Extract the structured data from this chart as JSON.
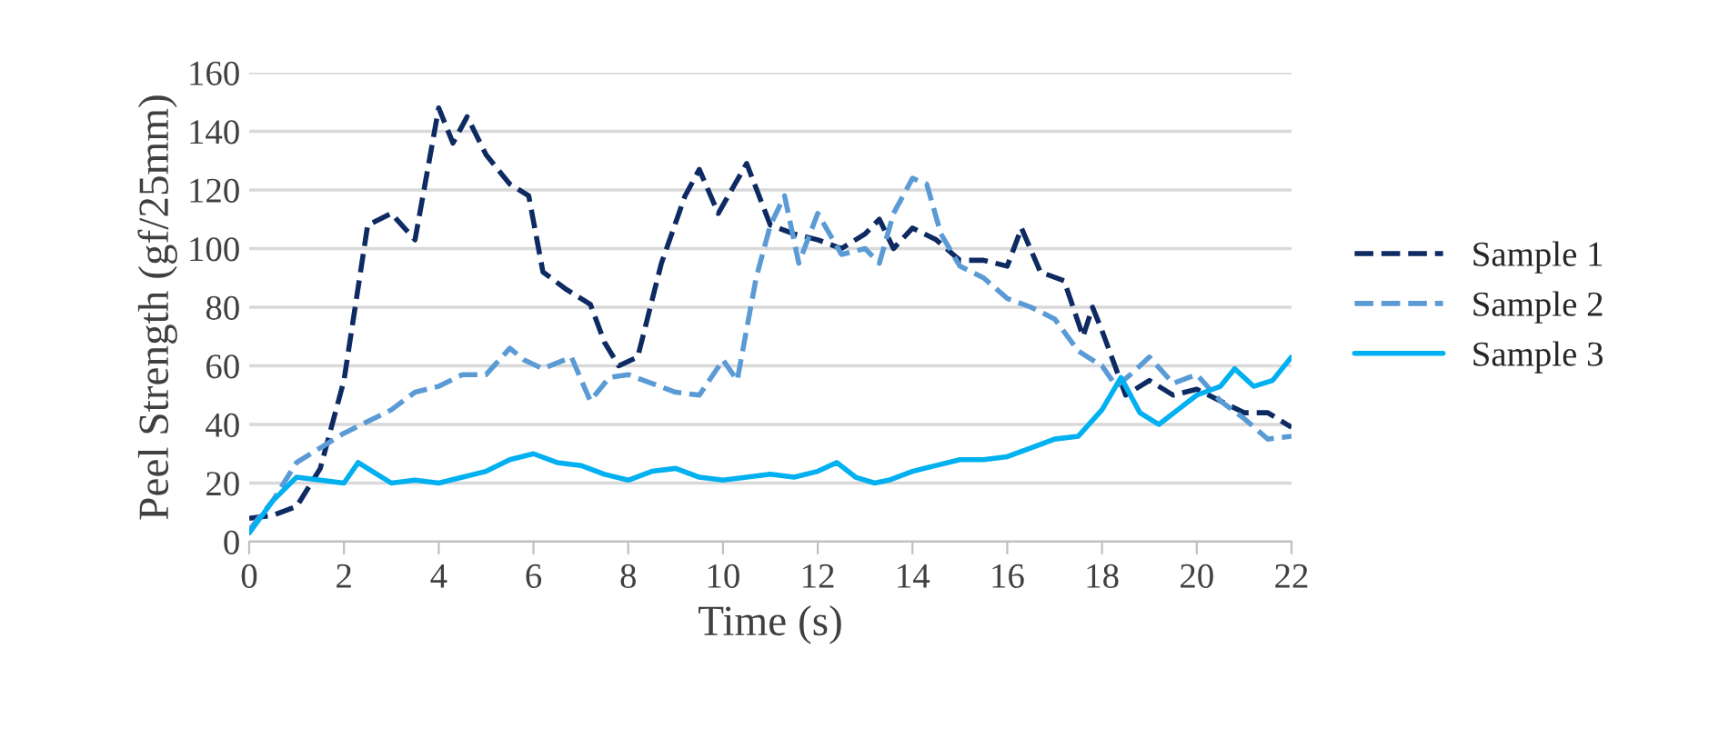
{
  "chart_data": {
    "type": "line",
    "xlabel": "Time (s)",
    "ylabel": "Peel Strength (gf/25mm)",
    "xlim": [
      0,
      22
    ],
    "xticks": [
      0,
      2,
      4,
      6,
      8,
      10,
      12,
      14,
      16,
      18,
      20,
      22
    ],
    "ylim": [
      0,
      160
    ],
    "yticks": [
      0,
      20,
      40,
      60,
      80,
      100,
      120,
      140,
      160
    ],
    "grid": "y",
    "legend": "right",
    "marker": "none",
    "series": [
      {
        "name": "Sample 1",
        "color": "#0d2a62",
        "line_style": "dashed",
        "x": [
          0,
          0.5,
          1,
          1.5,
          2,
          2.5,
          3,
          3.5,
          4,
          4.3,
          4.6,
          5,
          5.5,
          5.9,
          6.2,
          6.7,
          7.2,
          7.5,
          7.8,
          8.2,
          8.7,
          9.2,
          9.5,
          9.9,
          10.5,
          11,
          11.5,
          12,
          12.5,
          13,
          13.3,
          13.6,
          14,
          14.5,
          15,
          15.5,
          16,
          16.3,
          16.7,
          17.2,
          17.6,
          17.8,
          18,
          18.5,
          19,
          19.5,
          20,
          20.5,
          21,
          21.5,
          22
        ],
        "values": [
          8,
          9,
          12,
          25,
          55,
          108,
          112,
          103,
          148,
          136,
          145,
          132,
          122,
          118,
          92,
          86,
          81,
          68,
          60,
          63,
          95,
          118,
          127,
          112,
          129,
          108,
          105,
          103,
          100,
          105,
          110,
          100,
          107,
          103,
          96,
          96,
          94,
          107,
          92,
          89,
          70,
          80,
          72,
          50,
          55,
          50,
          52,
          48,
          44,
          44,
          39
        ]
      },
      {
        "name": "Sample 2",
        "color": "#5b9bd5",
        "line_style": "dashed",
        "x": [
          0,
          0.5,
          1,
          1.5,
          2,
          2.5,
          3,
          3.5,
          4,
          4.5,
          5,
          5.5,
          5.8,
          6.2,
          6.8,
          7.2,
          7.6,
          8,
          8.5,
          9,
          9.5,
          10,
          10.3,
          10.7,
          11,
          11.3,
          11.6,
          12,
          12.5,
          13,
          13.3,
          13.6,
          14,
          14.3,
          14.6,
          15,
          15.5,
          16,
          16.5,
          17,
          17.5,
          18,
          18.3,
          18.6,
          19,
          19.5,
          20,
          20.5,
          21,
          21.5,
          22
        ],
        "values": [
          4,
          14,
          27,
          32,
          37,
          41,
          45,
          51,
          53,
          57,
          57,
          66,
          62,
          59,
          63,
          48,
          56,
          57,
          54,
          51,
          50,
          62,
          55,
          90,
          108,
          118,
          95,
          112,
          98,
          100,
          95,
          112,
          124,
          122,
          105,
          94,
          90,
          83,
          80,
          76,
          65,
          60,
          53,
          57,
          63,
          54,
          57,
          48,
          42,
          35,
          36
        ]
      },
      {
        "name": "Sample 3",
        "color": "#00b0f0",
        "line_style": "solid",
        "x": [
          0,
          0.5,
          1,
          1.5,
          2,
          2.3,
          2.7,
          3,
          3.5,
          4,
          4.5,
          5,
          5.5,
          6,
          6.5,
          7,
          7.5,
          8,
          8.5,
          9,
          9.5,
          10,
          10.5,
          11,
          11.5,
          12,
          12.4,
          12.8,
          13.2,
          13.5,
          14,
          14.5,
          15,
          15.5,
          16,
          16.5,
          17,
          17.5,
          18,
          18.4,
          18.8,
          19.2,
          19.6,
          20,
          20.5,
          20.8,
          21.2,
          21.6,
          22
        ],
        "values": [
          3,
          14,
          22,
          21,
          20,
          27,
          23,
          20,
          21,
          20,
          22,
          24,
          28,
          30,
          27,
          26,
          23,
          21,
          24,
          25,
          22,
          21,
          22,
          23,
          22,
          24,
          27,
          22,
          20,
          21,
          24,
          26,
          28,
          28,
          29,
          32,
          35,
          36,
          45,
          56,
          44,
          40,
          45,
          50,
          53,
          59,
          53,
          55,
          63
        ]
      }
    ]
  }
}
